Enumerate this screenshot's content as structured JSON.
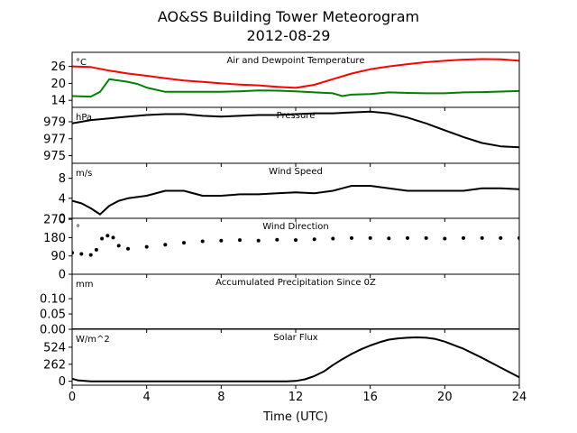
{
  "figure": {
    "title": "AO&SS Building Tower Meteorogram",
    "subtitle": "2012-08-29",
    "xlabel": "Time (UTC)"
  },
  "chart_data": [
    {
      "type": "line",
      "title": "Air and Dewpoint Temperature",
      "unit": "°C",
      "xlim": [
        0,
        24
      ],
      "ylim": [
        11.5,
        31
      ],
      "yticks": [
        "14",
        "20",
        "26"
      ],
      "series": [
        {
          "color": "#ff0000",
          "x": [
            0,
            1,
            2,
            3,
            4,
            5,
            6,
            7,
            8,
            9,
            10,
            11,
            12,
            13,
            14,
            15,
            16,
            17,
            18,
            19,
            20,
            21,
            22,
            23,
            24
          ],
          "y": [
            26,
            25.8,
            24.5,
            23.5,
            22.7,
            21.8,
            21,
            20.5,
            20,
            19.6,
            19.3,
            18.8,
            18.4,
            19.5,
            21.5,
            23.5,
            25,
            26,
            26.8,
            27.5,
            28,
            28.4,
            28.6,
            28.5,
            28
          ]
        },
        {
          "color": "#008000",
          "x": [
            0,
            1,
            1.5,
            2,
            2.5,
            3,
            3.5,
            4,
            5,
            6,
            7,
            8,
            9,
            10,
            11,
            12,
            13,
            14,
            14.5,
            15,
            16,
            17,
            18,
            19,
            20,
            21,
            22,
            23,
            24
          ],
          "y": [
            15.5,
            15.3,
            17,
            21.5,
            21,
            20.5,
            19.8,
            18.5,
            17,
            17,
            17,
            17,
            17.2,
            17.5,
            17.4,
            17.2,
            16.8,
            16.5,
            15.5,
            16,
            16.2,
            16.8,
            16.6,
            16.5,
            16.5,
            16.8,
            16.9,
            17.1,
            17.3
          ]
        }
      ]
    },
    {
      "type": "line",
      "title": "Pressure",
      "unit": "hPa",
      "xlim": [
        0,
        24
      ],
      "ylim": [
        974.1,
        980.7
      ],
      "yticks": [
        "975",
        "977",
        "979"
      ],
      "series": [
        {
          "color": "#000000",
          "x": [
            0,
            1,
            2,
            3,
            4,
            5,
            6,
            7,
            8,
            9,
            10,
            11,
            12,
            13,
            14,
            15,
            16,
            17,
            18,
            19,
            20,
            21,
            22,
            23,
            24
          ],
          "y": [
            978.8,
            979.2,
            979.4,
            979.6,
            979.8,
            979.9,
            979.9,
            979.7,
            979.6,
            979.7,
            979.8,
            979.8,
            979.9,
            980,
            980,
            980.1,
            980.2,
            980,
            979.5,
            978.8,
            978,
            977.2,
            976.5,
            976.1,
            976
          ]
        }
      ]
    },
    {
      "type": "line",
      "title": "Wind Speed",
      "unit": "m/s",
      "xlim": [
        0,
        24
      ],
      "ylim": [
        0,
        11
      ],
      "yticks": [
        "0",
        "4",
        "8"
      ],
      "series": [
        {
          "color": "#000000",
          "x": [
            0,
            0.5,
            1,
            1.5,
            2,
            2.5,
            3,
            4,
            5,
            6,
            7,
            8,
            9,
            10,
            11,
            12,
            13,
            14,
            15,
            16,
            17,
            18,
            19,
            20,
            21,
            22,
            23,
            24
          ],
          "y": [
            3.5,
            3,
            2,
            0.8,
            2.5,
            3.5,
            4,
            4.5,
            5.5,
            5.5,
            4.5,
            4.5,
            4.8,
            4.8,
            5,
            5.2,
            5,
            5.5,
            6.5,
            6.5,
            6,
            5.5,
            5.5,
            5.5,
            5.5,
            6,
            6,
            5.8
          ]
        }
      ]
    },
    {
      "type": "scatter",
      "title": "Wind Direction",
      "unit": "°",
      "xlim": [
        0,
        24
      ],
      "ylim": [
        0,
        275
      ],
      "yticks": [
        "0",
        "90",
        "180",
        "270"
      ],
      "series": [
        {
          "color": "#000000",
          "x": [
            0,
            0.5,
            1,
            1.3,
            1.6,
            1.9,
            2.2,
            2.5,
            3,
            4,
            5,
            6,
            7,
            8,
            9,
            10,
            11,
            12,
            13,
            14,
            15,
            16,
            17,
            18,
            19,
            20,
            21,
            22,
            23,
            24
          ],
          "y": [
            105,
            100,
            95,
            120,
            175,
            190,
            180,
            140,
            125,
            135,
            145,
            155,
            162,
            165,
            168,
            165,
            170,
            168,
            172,
            175,
            178,
            178,
            176,
            178,
            178,
            175,
            178,
            178,
            178,
            178
          ]
        }
      ]
    },
    {
      "type": "line",
      "title": "Accumulated Precipitation Since 0Z",
      "unit": "mm",
      "xlim": [
        0,
        24
      ],
      "ylim": [
        0,
        0.18
      ],
      "yticks": [
        "0.00",
        "0.05",
        "0.10"
      ],
      "series": [
        {
          "color": "#000000",
          "x": [
            0,
            24
          ],
          "y": [
            0,
            0
          ]
        }
      ]
    },
    {
      "type": "area",
      "title": "Solar Flux",
      "unit": "W/m^2",
      "xlim": [
        0,
        24
      ],
      "ylim": [
        -60,
        800
      ],
      "yticks": [
        "0",
        "262",
        "524"
      ],
      "xticks": [
        "0",
        "4",
        "8",
        "12",
        "16",
        "20",
        "24"
      ],
      "series": [
        {
          "color": "#000000",
          "x": [
            0,
            0.3,
            1,
            2,
            4,
            6,
            8,
            10,
            11.5,
            12,
            12.5,
            13,
            13.5,
            14,
            14.5,
            15,
            15.5,
            16,
            16.5,
            17,
            17.5,
            18,
            18.5,
            19,
            19.5,
            20,
            21,
            22,
            23,
            24
          ],
          "y": [
            40,
            15,
            0,
            0,
            0,
            0,
            0,
            0,
            0,
            5,
            30,
            80,
            150,
            250,
            340,
            420,
            490,
            550,
            600,
            640,
            660,
            670,
            675,
            670,
            650,
            610,
            500,
            360,
            210,
            60
          ]
        }
      ]
    }
  ]
}
